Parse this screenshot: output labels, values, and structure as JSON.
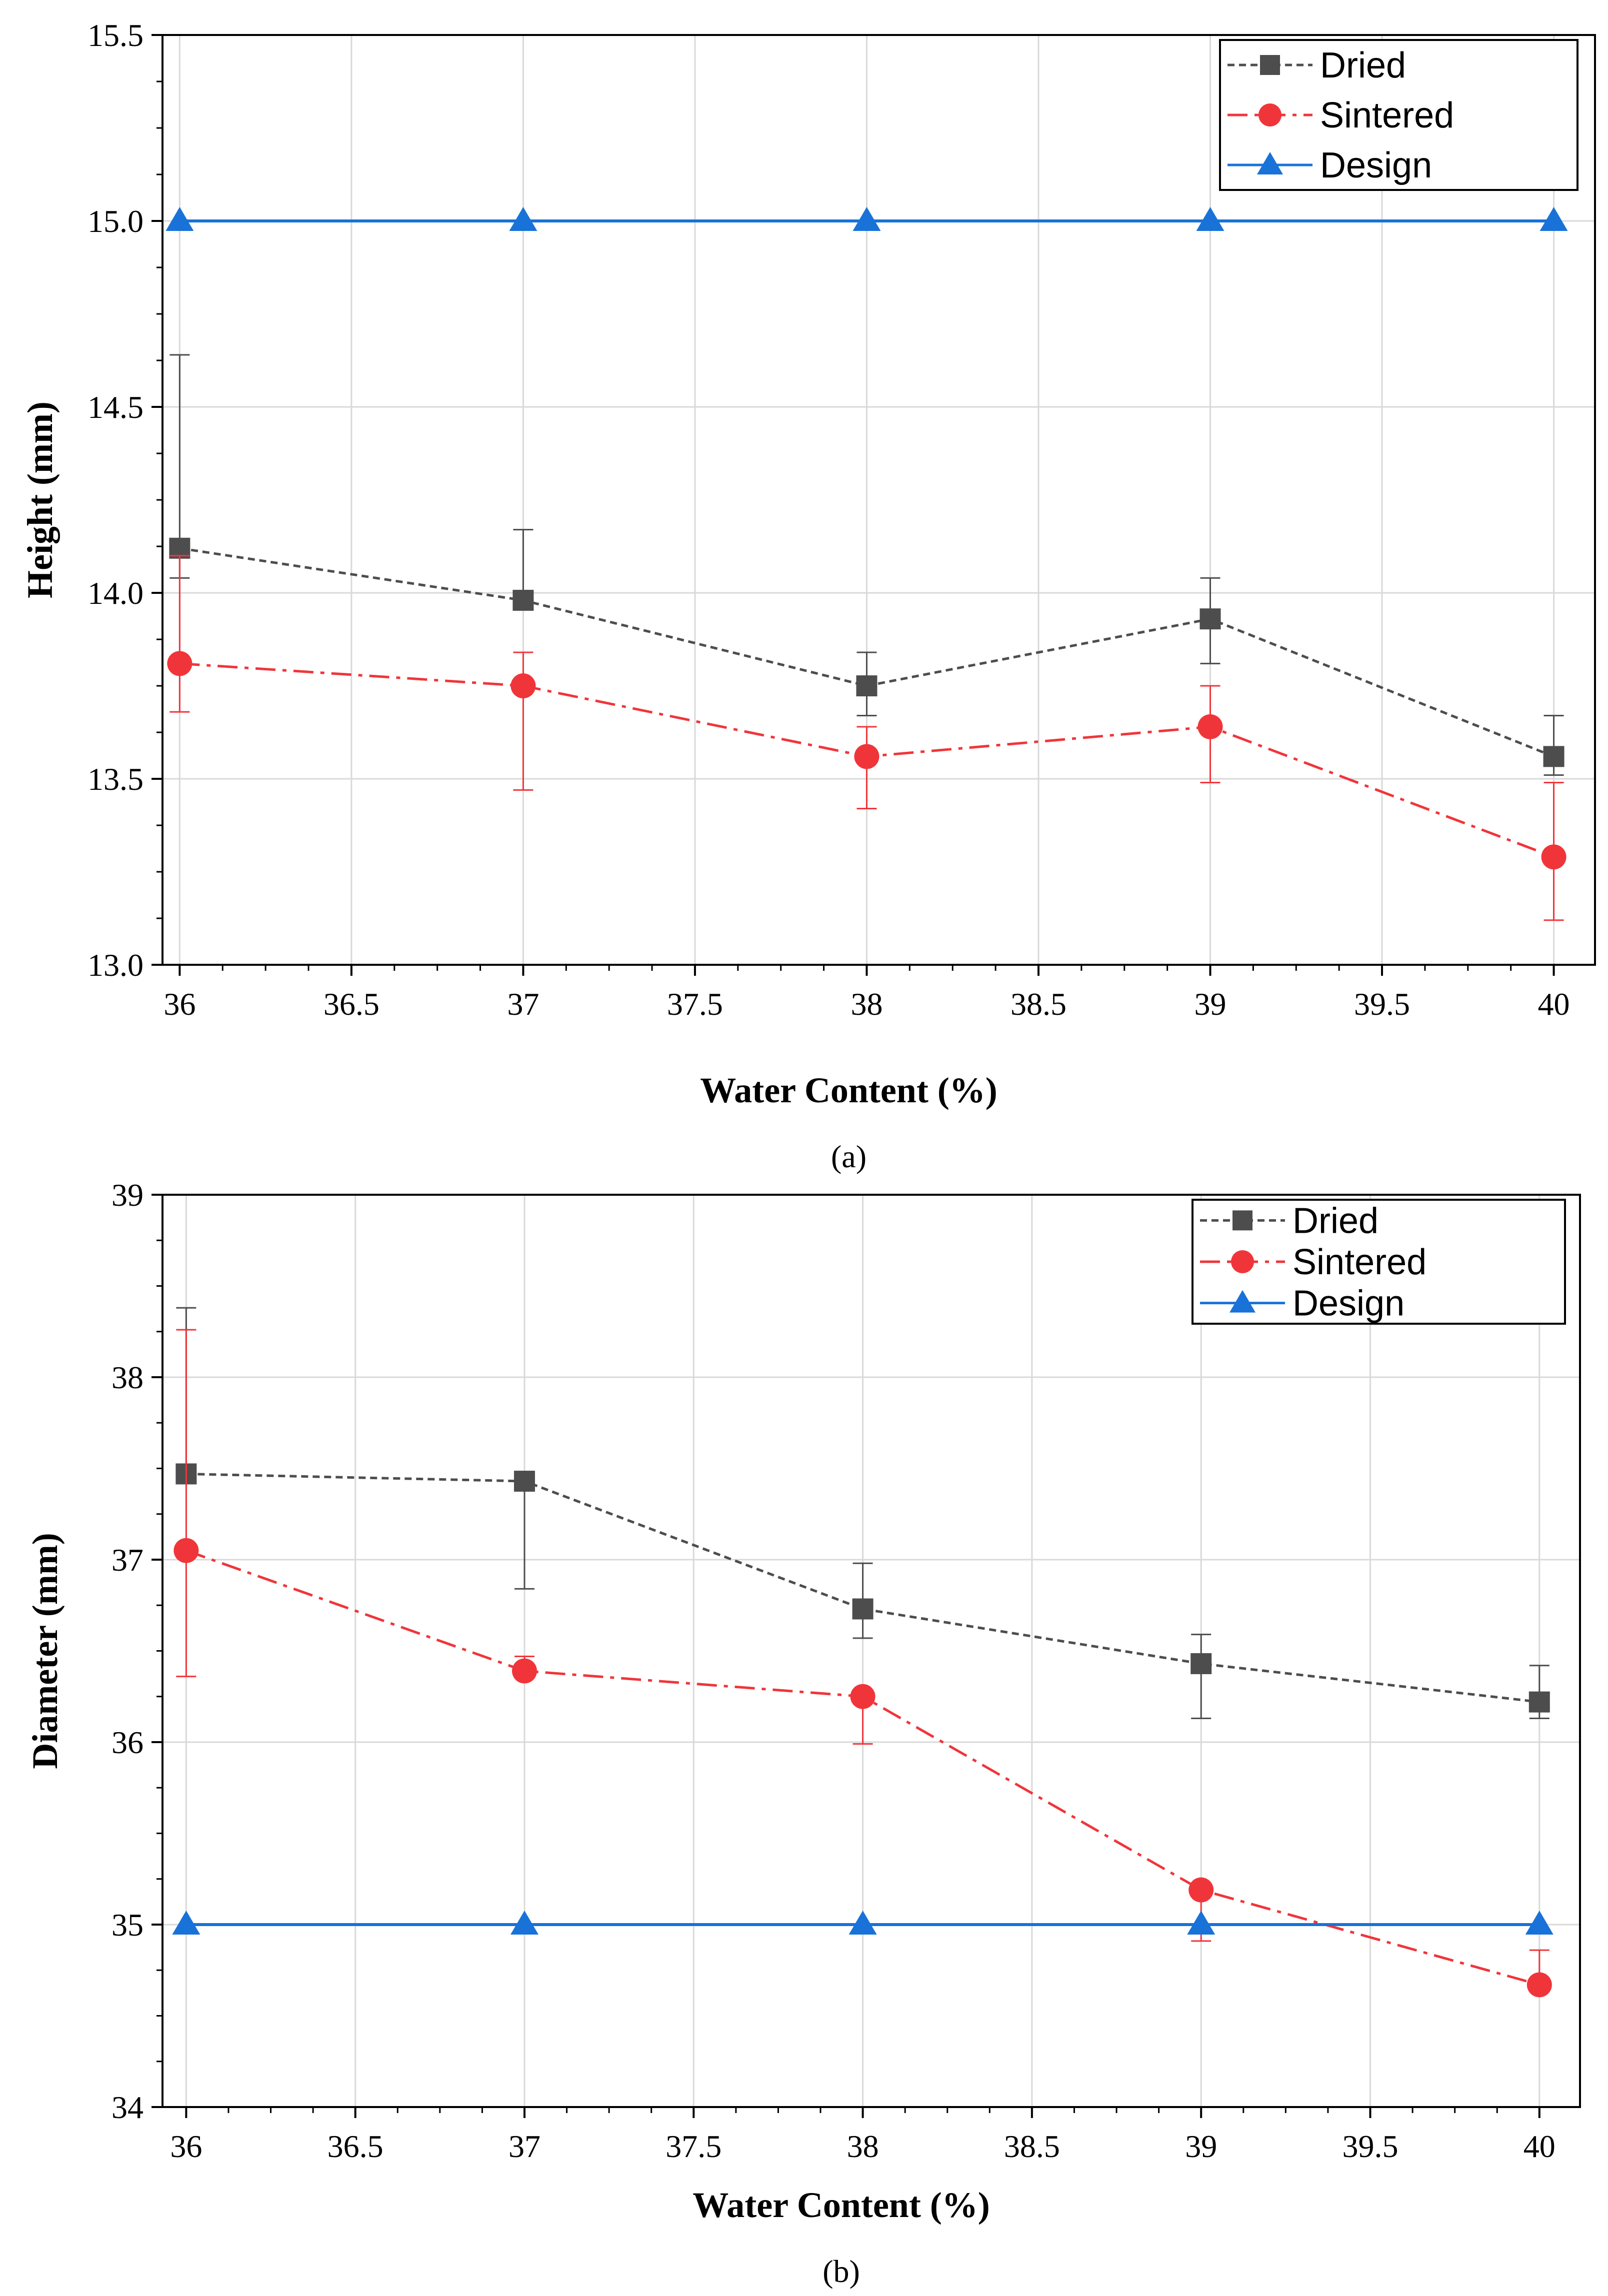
{
  "chart_data": [
    {
      "type": "line",
      "panel": "a",
      "caption": "(a)",
      "xlabel": "Water Content (%)",
      "ylabel": "Height (mm)",
      "xlim": [
        35.95,
        40.12
      ],
      "ylim": [
        13.0,
        15.5
      ],
      "xticks": [
        "36",
        "36.5",
        "37",
        "37.5",
        "38",
        "38.5",
        "39",
        "39.5",
        "40"
      ],
      "yticks": [
        "13.0",
        "13.5",
        "14.0",
        "14.5",
        "15.0",
        "15.5"
      ],
      "grid": true,
      "legend_position": "top-right",
      "x": [
        36,
        37,
        38,
        39,
        40
      ],
      "series": [
        {
          "name": "Dried",
          "color": "#4d4d4d",
          "marker": "square",
          "style": "dashed",
          "values": [
            14.12,
            13.98,
            13.75,
            13.93,
            13.56
          ],
          "err_upper": [
            14.64,
            14.17,
            13.84,
            14.04,
            13.67
          ],
          "err_lower": [
            14.04,
            13.98,
            13.67,
            13.81,
            13.51
          ]
        },
        {
          "name": "Sintered",
          "color": "#f0353a",
          "marker": "circle",
          "style": "dashdot",
          "values": [
            13.81,
            13.75,
            13.56,
            13.64,
            13.29
          ],
          "err_upper": [
            14.1,
            13.84,
            13.64,
            13.75,
            13.49
          ],
          "err_lower": [
            13.68,
            13.47,
            13.42,
            13.49,
            13.12
          ]
        },
        {
          "name": "Design",
          "color": "#1872d8",
          "marker": "triangle",
          "style": "solid",
          "values": [
            15.0,
            15.0,
            15.0,
            15.0,
            15.0
          ]
        }
      ]
    },
    {
      "type": "line",
      "panel": "b",
      "caption": "(b)",
      "xlabel": "Water Content (%)",
      "ylabel": "Diameter (mm)",
      "xlim": [
        35.93,
        40.12
      ],
      "ylim": [
        34,
        39
      ],
      "xticks": [
        "36",
        "36.5",
        "37",
        "37.5",
        "38",
        "38.5",
        "39",
        "39.5",
        "40"
      ],
      "yticks": [
        "34",
        "35",
        "36",
        "37",
        "38",
        "39"
      ],
      "grid": true,
      "legend_position": "top-right",
      "x": [
        36,
        37,
        38,
        39,
        40
      ],
      "series": [
        {
          "name": "Dried",
          "color": "#4d4d4d",
          "marker": "square",
          "style": "dashed",
          "values": [
            37.47,
            37.43,
            36.73,
            36.43,
            36.22
          ],
          "err_upper": [
            38.38,
            37.43,
            36.98,
            36.59,
            36.42
          ],
          "err_lower": [
            37.47,
            36.84,
            36.57,
            36.13,
            36.13
          ]
        },
        {
          "name": "Sintered",
          "color": "#f0353a",
          "marker": "circle",
          "style": "dashdot",
          "values": [
            37.05,
            36.39,
            36.25,
            35.19,
            34.67
          ],
          "err_upper": [
            38.26,
            36.47,
            36.25,
            35.19,
            34.86
          ],
          "err_lower": [
            36.36,
            36.39,
            35.99,
            34.91,
            34.67
          ]
        },
        {
          "name": "Design",
          "color": "#1872d8",
          "marker": "triangle",
          "style": "solid",
          "values": [
            35.0,
            35.0,
            35.0,
            35.0,
            35.0
          ]
        }
      ]
    }
  ]
}
